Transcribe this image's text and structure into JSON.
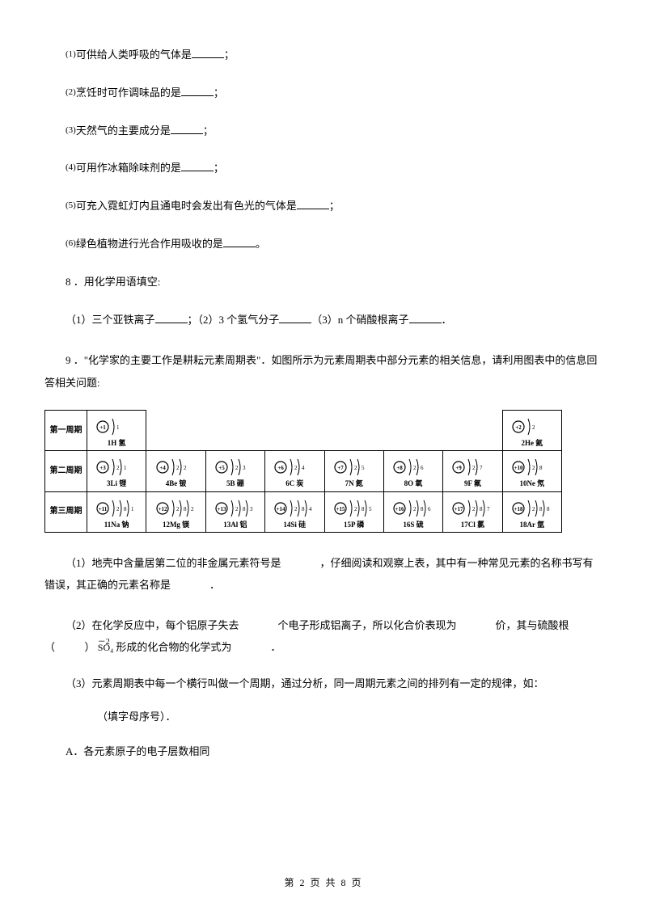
{
  "questions": {
    "q1": {
      "num": "(1)",
      "text": "可供给人类呼吸的气体是",
      "tail": "；"
    },
    "q2": {
      "num": "(2)",
      "text": "烹饪时可作调味品的是",
      "tail": "；"
    },
    "q3": {
      "num": "(3)",
      "text": "天然气的主要成分是",
      "tail": "；"
    },
    "q4": {
      "num": "(4)",
      "text": "可用作冰箱除味剂的是",
      "tail": "；"
    },
    "q5": {
      "num": "(5)",
      "text": "可充入霓虹灯内且通电时会发出有色光的气体是",
      "tail": "；"
    },
    "q6": {
      "num": "(6)",
      "text": "绿色植物进行光合作用吸收的是",
      "tail": "。"
    }
  },
  "q8": {
    "title": "8 ．用化学用语填空:",
    "p1_a": "（1）三个亚铁离子",
    "p1_b": "；（2）3 个氢气分子",
    "p1_c": "（3）n 个硝酸根离子",
    "p1_d": "．"
  },
  "q9": {
    "intro": "9 ．\"化学家的主要工作是耕耘元素周期表\"．如图所示为元素周期表中部分元素的相关信息，请利用图表中的信息回答相关问题:",
    "sub1_a": "（1）地壳中含量居第二位的非金属元素符号是",
    "sub1_b": "，仔细阅读和观察上表，其中有一种常见元素的名称书写有错误，其正确的元素名称是",
    "sub1_c": "．",
    "sub2_a": "（2）在化学反应中，每个铝原子失去",
    "sub2_b": "个电子形成铝离子，所以化合价表现为",
    "sub2_c": "价，其与硫酸根",
    "sub2_left": "（",
    "sub2_right": "）",
    "sub2_neg": "－2",
    "sub2_so4": "SO₄",
    "sub2_d": "形成的化合物的化学式为",
    "sub2_e": "．",
    "sub3_a": "（3）元素周期表中每一个横行叫做一个周期，通过分析，同一周期元素之间的排列有一定的规律，如：",
    "sub3_b": "（填字母序号）．",
    "optA": "A．各元素原子的电子层数相同"
  },
  "periods": {
    "p1": "第一周期",
    "p2": "第二周期",
    "p3": "第三周期"
  },
  "elements": {
    "r1": [
      {
        "charge": "+1",
        "shells": [
          1
        ],
        "label": "1H 氢"
      },
      {
        "charge": "+2",
        "shells": [
          2
        ],
        "label": "2He 氦"
      }
    ],
    "r2": [
      {
        "charge": "+3",
        "shells": [
          2,
          1
        ],
        "label": "3Li 锂"
      },
      {
        "charge": "+4",
        "shells": [
          2,
          2
        ],
        "label": "4Be 铍"
      },
      {
        "charge": "+5",
        "shells": [
          2,
          3
        ],
        "label": "5B 硼"
      },
      {
        "charge": "+6",
        "shells": [
          2,
          4
        ],
        "label": "6C 炭"
      },
      {
        "charge": "+7",
        "shells": [
          2,
          5
        ],
        "label": "7N 氮"
      },
      {
        "charge": "+8",
        "shells": [
          2,
          6
        ],
        "label": "8O 氧"
      },
      {
        "charge": "+9",
        "shells": [
          2,
          7
        ],
        "label": "9F 氟"
      },
      {
        "charge": "+10",
        "shells": [
          2,
          8
        ],
        "label": "10Ne 氖"
      }
    ],
    "r3": [
      {
        "charge": "+11",
        "shells": [
          2,
          8,
          1
        ],
        "label": "11Na 钠"
      },
      {
        "charge": "+12",
        "shells": [
          2,
          8,
          2
        ],
        "label": "12Mg 镁"
      },
      {
        "charge": "+13",
        "shells": [
          2,
          8,
          3
        ],
        "label": "13Al 铝"
      },
      {
        "charge": "+14",
        "shells": [
          2,
          8,
          4
        ],
        "label": "14Si 硅"
      },
      {
        "charge": "+15",
        "shells": [
          2,
          8,
          5
        ],
        "label": "15P 磷"
      },
      {
        "charge": "+16",
        "shells": [
          2,
          8,
          6
        ],
        "label": "16S 硫"
      },
      {
        "charge": "+17",
        "shells": [
          2,
          8,
          7
        ],
        "label": "17Cl 氯"
      },
      {
        "charge": "+18",
        "shells": [
          2,
          8,
          8
        ],
        "label": "18Ar 氩"
      }
    ]
  },
  "footer": "第 2 页 共 8 页"
}
